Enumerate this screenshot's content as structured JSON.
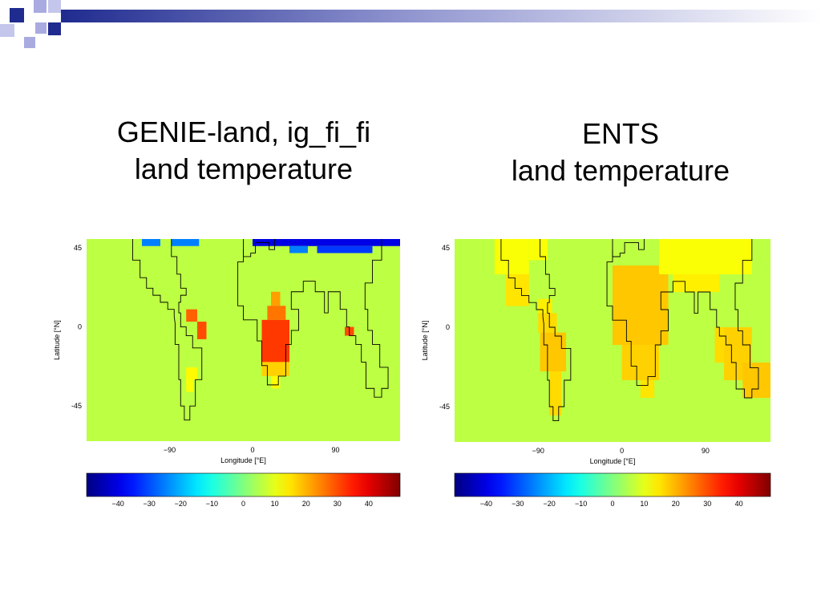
{
  "slide": {
    "accent_colors": [
      "#1f2b8f",
      "#a9abe0"
    ]
  },
  "chart_data": [
    {
      "type": "heatmap",
      "title_lines": [
        "GENIE-land, ig_fi_fi",
        "land temperature"
      ],
      "xlabel": "Longitude [°E]",
      "ylabel": "Latitude [°N]",
      "xlim": [
        -180,
        160
      ],
      "ylim": [
        -65,
        50
      ],
      "x_ticks": [
        -90,
        0,
        90
      ],
      "y_ticks": [
        45,
        0,
        -45
      ],
      "background_value": 6,
      "colorbar": {
        "range": [
          -50,
          50
        ],
        "ticks": [
          -40,
          -30,
          -20,
          -10,
          0,
          10,
          20,
          30,
          40
        ]
      },
      "cells": [
        {
          "lon": [
            -120,
            -100
          ],
          "lat": [
            46,
            50
          ],
          "value": -25
        },
        {
          "lon": [
            -88,
            -58
          ],
          "lat": [
            46,
            50
          ],
          "value": -25
        },
        {
          "lon": [
            0,
            160
          ],
          "lat": [
            46,
            50
          ],
          "value": -40
        },
        {
          "lon": [
            40,
            60
          ],
          "lat": [
            42,
            46
          ],
          "value": -25
        },
        {
          "lon": [
            70,
            130
          ],
          "lat": [
            42,
            46
          ],
          "value": -32
        },
        {
          "lon": [
            -72,
            -60
          ],
          "lat": [
            3,
            10
          ],
          "value": 28
        },
        {
          "lon": [
            -60,
            -50
          ],
          "lat": [
            -7,
            3
          ],
          "value": 30
        },
        {
          "lon": [
            -72,
            -60
          ],
          "lat": [
            -30,
            -23
          ],
          "value": 13
        },
        {
          "lon": [
            -72,
            -64
          ],
          "lat": [
            -37,
            -30
          ],
          "value": 12
        },
        {
          "lon": [
            20,
            30
          ],
          "lat": [
            12,
            20
          ],
          "value": 22
        },
        {
          "lon": [
            16,
            36
          ],
          "lat": [
            4,
            12
          ],
          "value": 26
        },
        {
          "lon": [
            10,
            40
          ],
          "lat": [
            -20,
            4
          ],
          "value": 32
        },
        {
          "lon": [
            10,
            40
          ],
          "lat": [
            -28,
            -20
          ],
          "value": 17
        },
        {
          "lon": [
            20,
            30
          ],
          "lat": [
            -35,
            -28
          ],
          "value": 12
        },
        {
          "lon": [
            100,
            110
          ],
          "lat": [
            -5,
            0
          ],
          "value": 30
        }
      ]
    },
    {
      "type": "heatmap",
      "title_lines": [
        "ENTS",
        "land temperature"
      ],
      "xlabel": "Longitude [°E]",
      "ylabel": "Latitude [°N]",
      "xlim": [
        -180,
        160
      ],
      "ylim": [
        -65,
        50
      ],
      "x_ticks": [
        -90,
        0,
        90
      ],
      "y_ticks": [
        45,
        0,
        -45
      ],
      "background_value": 6,
      "colorbar": {
        "range": [
          -50,
          50
        ],
        "ticks": [
          -40,
          -30,
          -20,
          -10,
          0,
          10,
          20,
          30,
          40
        ]
      },
      "cells": [
        {
          "lon": [
            -137,
            -100
          ],
          "lat": [
            30,
            50
          ],
          "value": 12
        },
        {
          "lon": [
            -100,
            -80
          ],
          "lat": [
            38,
            50
          ],
          "value": 12
        },
        {
          "lon": [
            -125,
            -100
          ],
          "lat": [
            12,
            30
          ],
          "value": 15
        },
        {
          "lon": [
            -90,
            -75
          ],
          "lat": [
            8,
            16
          ],
          "value": 14
        },
        {
          "lon": [
            -90,
            -70
          ],
          "lat": [
            -3,
            8
          ],
          "value": 16
        },
        {
          "lon": [
            -88,
            -60
          ],
          "lat": [
            -25,
            -3
          ],
          "value": 18
        },
        {
          "lon": [
            -78,
            -65
          ],
          "lat": [
            -50,
            -25
          ],
          "value": 16
        },
        {
          "lon": [
            -10,
            50
          ],
          "lat": [
            -10,
            35
          ],
          "value": 18
        },
        {
          "lon": [
            0,
            40
          ],
          "lat": [
            -30,
            -10
          ],
          "value": 17
        },
        {
          "lon": [
            20,
            35
          ],
          "lat": [
            -40,
            -30
          ],
          "value": 15
        },
        {
          "lon": [
            40,
            140
          ],
          "lat": [
            30,
            50
          ],
          "value": 12
        },
        {
          "lon": [
            55,
            105
          ],
          "lat": [
            20,
            30
          ],
          "value": 14
        },
        {
          "lon": [
            110,
            140
          ],
          "lat": [
            -30,
            0
          ],
          "value": 17
        },
        {
          "lon": [
            130,
            160
          ],
          "lat": [
            -40,
            -20
          ],
          "value": 18
        },
        {
          "lon": [
            100,
            110
          ],
          "lat": [
            -20,
            0
          ],
          "value": 16
        }
      ]
    }
  ]
}
